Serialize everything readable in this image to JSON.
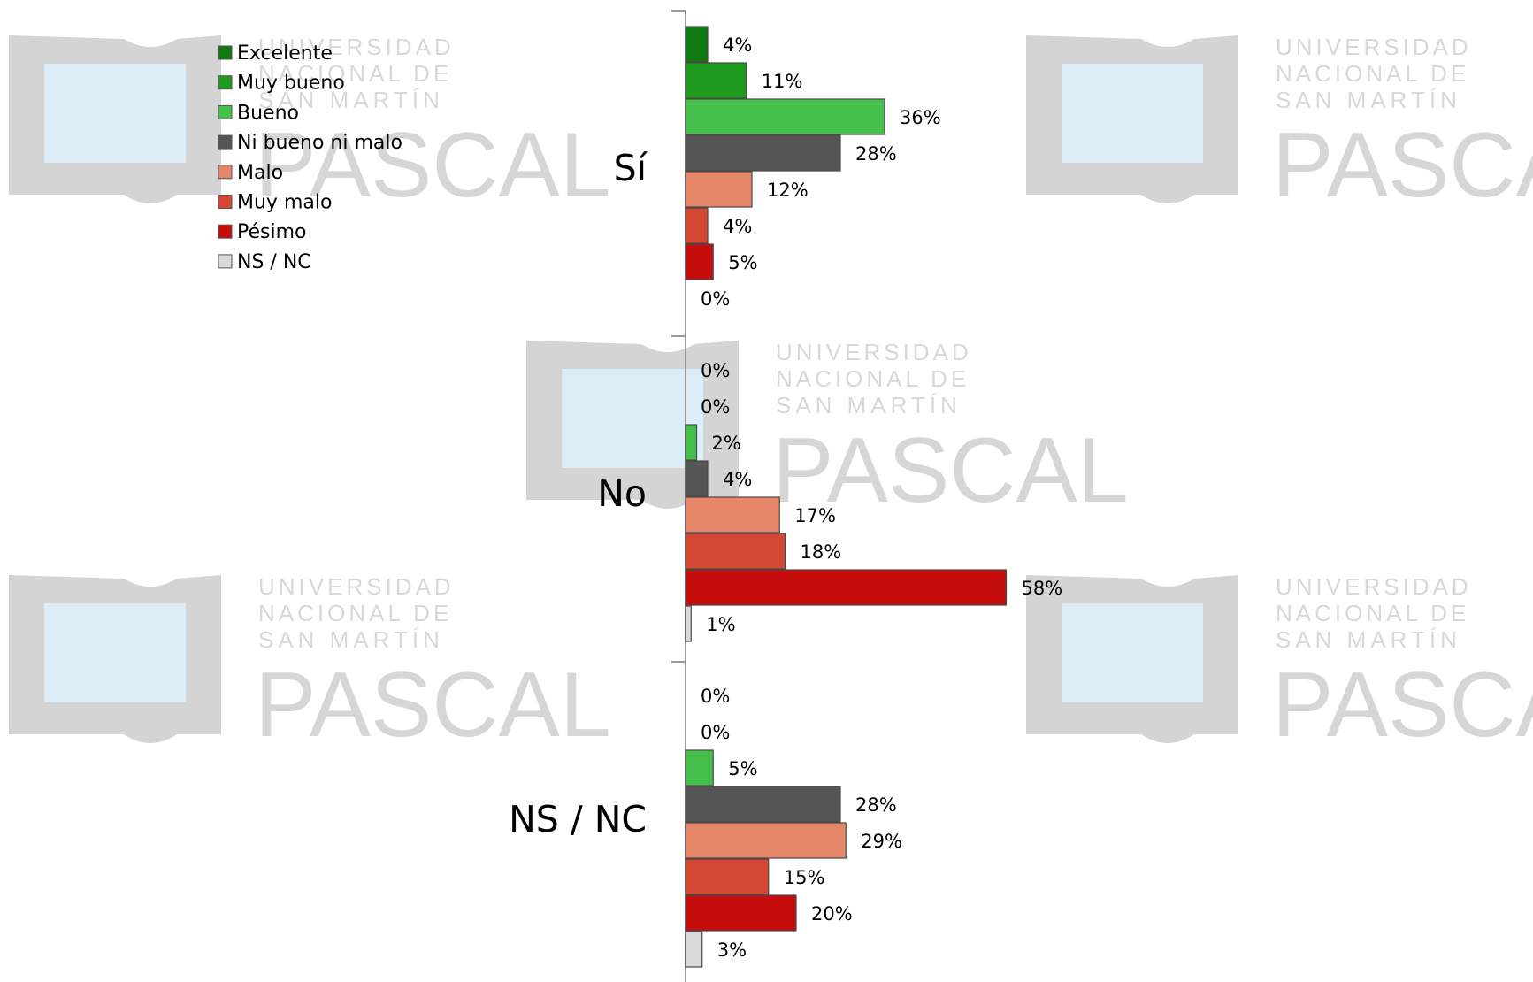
{
  "watermark": {
    "line1": "UNIVERSIDAD",
    "line2": "NACIONAL DE",
    "line3": "SAN MARTÍN",
    "brand": "PASCAL"
  },
  "chart_data": {
    "type": "bar",
    "orientation": "horizontal",
    "categories": [
      "Sí",
      "No",
      "NS / NC"
    ],
    "series": [
      {
        "name": "Excelente",
        "color": "#0f7a12",
        "values": [
          4,
          0,
          0
        ]
      },
      {
        "name": "Muy bueno",
        "color": "#1e9a1e",
        "values": [
          11,
          0,
          0
        ]
      },
      {
        "name": "Bueno",
        "color": "#45c04a",
        "values": [
          36,
          2,
          5
        ]
      },
      {
        "name": "Ni bueno ni malo",
        "color": "#555555",
        "values": [
          28,
          4,
          28
        ]
      },
      {
        "name": "Malo",
        "color": "#e68769",
        "values": [
          12,
          17,
          29
        ]
      },
      {
        "name": "Muy malo",
        "color": "#d44733",
        "values": [
          4,
          18,
          15
        ]
      },
      {
        "name": "Pésimo",
        "color": "#c50d0d",
        "values": [
          5,
          58,
          20
        ]
      },
      {
        "name": "NS / NC",
        "color": "#d9d9d9",
        "values": [
          0,
          1,
          3
        ]
      }
    ],
    "value_suffix": "%",
    "xlim": [
      0,
      100
    ],
    "grid": false,
    "legend_position": "top-left"
  }
}
